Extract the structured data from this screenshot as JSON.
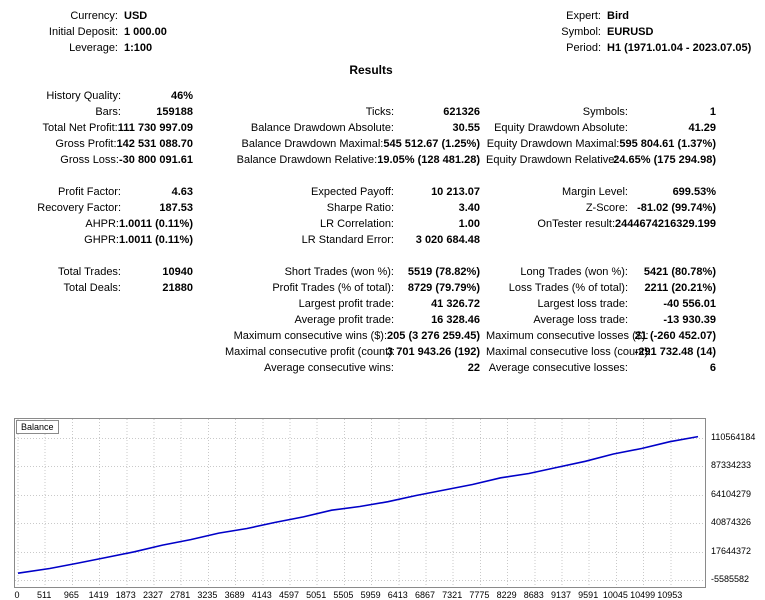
{
  "header": {
    "left": [
      {
        "label": "Currency:",
        "value": "USD"
      },
      {
        "label": "Initial Deposit:",
        "value": "1 000.00"
      },
      {
        "label": "Leverage:",
        "value": "1:100"
      }
    ],
    "right": [
      {
        "label": "Expert:",
        "value": "Bird"
      },
      {
        "label": "Symbol:",
        "value": "EURUSD"
      },
      {
        "label": "Period:",
        "value": "H1 (1971.01.04 - 2023.07.05)"
      }
    ]
  },
  "results_title": "Results",
  "stats": {
    "col1": [
      {
        "label": "History Quality:",
        "value": "46%"
      },
      {
        "label": "Bars:",
        "value": "159188"
      },
      {
        "label": "Total Net Profit:",
        "value": "111 730 997.09"
      },
      {
        "label": "Gross Profit:",
        "value": "142 531 088.70"
      },
      {
        "label": "Gross Loss:",
        "value": "-30 800 091.61"
      },
      {
        "label": "",
        "value": ""
      },
      {
        "label": "Profit Factor:",
        "value": "4.63"
      },
      {
        "label": "Recovery Factor:",
        "value": "187.53"
      },
      {
        "label": "AHPR:",
        "value": "1.0011 (0.11%)"
      },
      {
        "label": "GHPR:",
        "value": "1.0011 (0.11%)"
      },
      {
        "label": "",
        "value": ""
      },
      {
        "label": "Total Trades:",
        "value": "10940"
      },
      {
        "label": "Total Deals:",
        "value": "21880"
      }
    ],
    "col2": [
      {
        "label": "",
        "value": ""
      },
      {
        "label": "Ticks:",
        "value": "621326"
      },
      {
        "label": "Balance Drawdown Absolute:",
        "value": "30.55"
      },
      {
        "label": "Balance Drawdown Maximal:",
        "value": "545 512.67 (1.25%)"
      },
      {
        "label": "Balance Drawdown Relative:",
        "value": "19.05% (128 481.28)"
      },
      {
        "label": "",
        "value": ""
      },
      {
        "label": "Expected Payoff:",
        "value": "10 213.07"
      },
      {
        "label": "Sharpe Ratio:",
        "value": "3.40"
      },
      {
        "label": "LR Correlation:",
        "value": "1.00"
      },
      {
        "label": "LR Standard Error:",
        "value": "3 020 684.48"
      },
      {
        "label": "",
        "value": ""
      },
      {
        "label": "Short Trades (won %):",
        "value": "5519 (78.82%)"
      },
      {
        "label": "Profit Trades (% of total):",
        "value": "8729 (79.79%)"
      },
      {
        "label": "Largest profit trade:",
        "value": "41 326.72"
      },
      {
        "label": "Average profit trade:",
        "value": "16 328.46"
      },
      {
        "label": "Maximum consecutive wins ($):",
        "value": "205 (3 276 259.45)"
      },
      {
        "label": "Maximal consecutive profit (count):",
        "value": "3 701 943.26 (192)"
      },
      {
        "label": "Average consecutive wins:",
        "value": "22"
      }
    ],
    "col3": [
      {
        "label": "",
        "value": ""
      },
      {
        "label": "Symbols:",
        "value": "1"
      },
      {
        "label": "Equity Drawdown Absolute:",
        "value": "41.29"
      },
      {
        "label": "Equity Drawdown Maximal:",
        "value": "595 804.61 (1.37%)"
      },
      {
        "label": "Equity Drawdown Relative:",
        "value": "24.65% (175 294.98)"
      },
      {
        "label": "",
        "value": ""
      },
      {
        "label": "Margin Level:",
        "value": "699.53%"
      },
      {
        "label": "Z-Score:",
        "value": "-81.02 (99.74%)"
      },
      {
        "label": "OnTester result:",
        "value": "2444674216329.199"
      },
      {
        "label": "",
        "value": ""
      },
      {
        "label": "",
        "value": ""
      },
      {
        "label": "Long Trades (won %):",
        "value": "5421 (80.78%)"
      },
      {
        "label": "Loss Trades (% of total):",
        "value": "2211 (20.21%)"
      },
      {
        "label": "Largest loss trade:",
        "value": "-40 556.01"
      },
      {
        "label": "Average loss trade:",
        "value": "-13 930.39"
      },
      {
        "label": "Maximum consecutive losses ($):",
        "value": "21 (-260 452.07)"
      },
      {
        "label": "Maximal consecutive loss (count):",
        "value": "-291 732.48 (14)"
      },
      {
        "label": "Average consecutive losses:",
        "value": "6"
      }
    ]
  },
  "chart_data": {
    "type": "line",
    "title": "Balance",
    "xlabel": "",
    "ylabel": "",
    "xlim": [
      0,
      10953
    ],
    "ylim": [
      -5585582,
      110564184
    ],
    "grid": true,
    "legend_position": "top-left",
    "line_color": "#0000C8",
    "grid_color": "#c9c9c9",
    "x_ticks": [
      0,
      511,
      965,
      1419,
      1873,
      2327,
      2781,
      3235,
      3689,
      4143,
      4597,
      5051,
      5505,
      5959,
      6413,
      6867,
      7321,
      7775,
      8229,
      8683,
      9137,
      9591,
      10045,
      10499,
      10953
    ],
    "y_ticks": [
      110564184,
      87334233,
      64104279,
      40874326,
      17644372,
      -5585582
    ],
    "series": [
      {
        "name": "Balance",
        "color": "#0000C8",
        "x": [
          0,
          511,
          965,
          1419,
          1873,
          2327,
          2781,
          3235,
          3689,
          4143,
          4597,
          5051,
          5505,
          5959,
          6413,
          6867,
          7321,
          7775,
          8229,
          8683,
          9137,
          9591,
          10045,
          10499,
          10953
        ],
        "y": [
          1000,
          3800000,
          8200000,
          12800000,
          17500000,
          23000000,
          27500000,
          32800000,
          36500000,
          41500000,
          46000000,
          51500000,
          54500000,
          58500000,
          63500000,
          68000000,
          72500000,
          78000000,
          81500000,
          86500000,
          91500000,
          97500000,
          102000000,
          107500000,
          111731997
        ]
      }
    ]
  }
}
